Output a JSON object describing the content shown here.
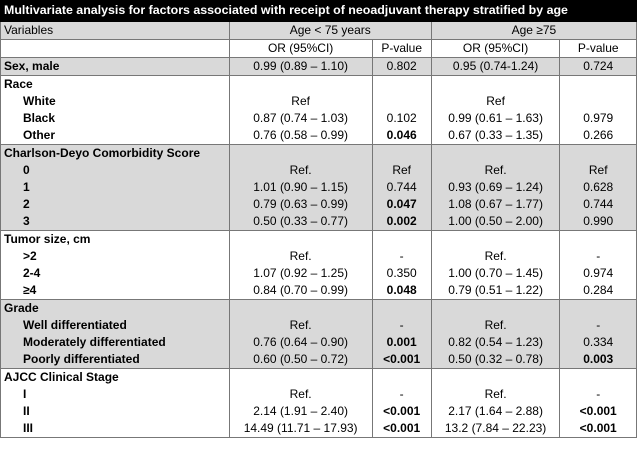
{
  "title": "Multivariate analysis for factors associated with receipt of neoadjuvant therapy stratified by age",
  "header": {
    "variables": "Variables",
    "age_lt75": "Age < 75 years",
    "age_ge75": "Age ≥75",
    "or_label": "OR (95%CI)",
    "p_label": "P-value"
  },
  "rows": [
    {
      "label": "Sex, male",
      "or1": "0.99 (0.89 – 1.10)",
      "p1": "0.802",
      "or2": "0.95 (0.74-1.24)",
      "p2": "0.724"
    },
    {
      "label": "Race",
      "or1": "",
      "p1": "",
      "or2": "",
      "p2": ""
    },
    {
      "label": "White",
      "or1": "Ref",
      "p1": "",
      "or2": "Ref",
      "p2": ""
    },
    {
      "label": "Black",
      "or1": "0.87 (0.74 – 1.03)",
      "p1": "0.102",
      "or2": "0.99 (0.61 – 1.63)",
      "p2": "0.979"
    },
    {
      "label": "Other",
      "or1": "0.76 (0.58 – 0.99)",
      "p1": "0.046",
      "or2": "0.67 (0.33 – 1.35)",
      "p2": "0.266"
    },
    {
      "label": "Charlson-Deyo Comorbidity Score",
      "or1": "",
      "p1": "",
      "or2": "",
      "p2": ""
    },
    {
      "label": "0",
      "or1": "Ref.",
      "p1": "Ref",
      "or2": "Ref.",
      "p2": "Ref"
    },
    {
      "label": "1",
      "or1": "1.01 (0.90 – 1.15)",
      "p1": "0.744",
      "or2": "0.93 (0.69 – 1.24)",
      "p2": "0.628"
    },
    {
      "label": "2",
      "or1": "0.79 (0.63 – 0.99)",
      "p1": "0.047",
      "or2": "1.08 (0.67 – 1.77)",
      "p2": "0.744"
    },
    {
      "label": "3",
      "or1": "0.50 (0.33 – 0.77)",
      "p1": "0.002",
      "or2": "1.00 (0.50 – 2.00)",
      "p2": "0.990"
    },
    {
      "label": "Tumor size, cm",
      "or1": "",
      "p1": "",
      "or2": "",
      "p2": ""
    },
    {
      "label": ">2",
      "or1": "Ref.",
      "p1": "-",
      "or2": "Ref.",
      "p2": "-"
    },
    {
      "label": "2-4",
      "or1": "1.07 (0.92 – 1.25)",
      "p1": "0.350",
      "or2": "1.00 (0.70 – 1.45)",
      "p2": "0.974"
    },
    {
      "label": "≥4",
      "or1": "0.84 (0.70 – 0.99)",
      "p1": "0.048",
      "or2": "0.79 (0.51 – 1.22)",
      "p2": "0.284"
    },
    {
      "label": "Grade",
      "or1": "",
      "p1": "",
      "or2": "",
      "p2": ""
    },
    {
      "label": "Well differentiated",
      "or1": "Ref.",
      "p1": "-",
      "or2": "Ref.",
      "p2": "-"
    },
    {
      "label": "Moderately differentiated",
      "or1": "0.76 (0.64 – 0.90)",
      "p1": "0.001",
      "or2": "0.82 (0.54 – 1.23)",
      "p2": "0.334"
    },
    {
      "label": "Poorly differentiated",
      "or1": "0.60 (0.50 – 0.72)",
      "p1": "<0.001",
      "or2": "0.50 (0.32 – 0.78)",
      "p2": "0.003"
    },
    {
      "label": "AJCC Clinical Stage",
      "or1": "",
      "p1": "",
      "or2": "",
      "p2": ""
    },
    {
      "label": "I",
      "or1": "Ref.",
      "p1": "-",
      "or2": "Ref.",
      "p2": "-"
    },
    {
      "label": "II",
      "or1": "2.14 (1.91 – 2.40)",
      "p1": "<0.001",
      "or2": "2.17 (1.64 – 2.88)",
      "p2": "<0.001"
    },
    {
      "label": "III",
      "or1": "14.49 (11.71 – 17.93)",
      "p1": "<0.001",
      "or2": "13.2 (7.84 – 22.23)",
      "p2": "<0.001"
    }
  ],
  "colors": {
    "header_bg": "#000000",
    "shade": "#d9d9d9",
    "border": "#777777"
  }
}
